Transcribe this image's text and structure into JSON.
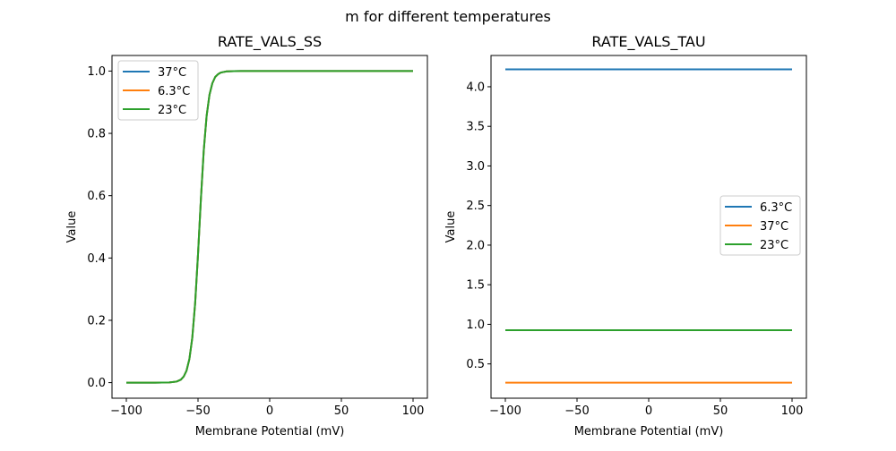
{
  "suptitle": "m for different temperatures",
  "chart_data": [
    {
      "type": "line",
      "title": "RATE_VALS_SS",
      "xlabel": "Membrane Potential (mV)",
      "ylabel": "Value",
      "xlim": [
        -110,
        110
      ],
      "ylim": [
        -0.05,
        1.05
      ],
      "xticks": [
        -100,
        -50,
        0,
        50,
        100
      ],
      "yticks": [
        0.0,
        0.2,
        0.4,
        0.6,
        0.8,
        1.0
      ],
      "xtick_labels": [
        "−100",
        "−50",
        "0",
        "50",
        "100"
      ],
      "ytick_labels": [
        "0.0",
        "0.2",
        "0.4",
        "0.6",
        "0.8",
        "1.0"
      ],
      "grid": false,
      "legend_position": "upper-left",
      "x": [
        -100,
        -80,
        -70,
        -65,
        -62,
        -60,
        -58,
        -56,
        -54,
        -52,
        -50,
        -48,
        -46,
        -44,
        -42,
        -40,
        -38,
        -36,
        -34,
        -30,
        -25,
        -20,
        0,
        50,
        100
      ],
      "series": [
        {
          "name": "37°C",
          "color": "#1f77b4",
          "values": [
            0,
            0,
            0.0006,
            0.0033,
            0.0095,
            0.0193,
            0.0386,
            0.0759,
            0.1437,
            0.255,
            0.412,
            0.588,
            0.745,
            0.856,
            0.924,
            0.961,
            0.981,
            0.99,
            0.9953,
            0.9989,
            0.9998,
            1,
            1,
            1,
            1
          ]
        },
        {
          "name": "6.3°C",
          "color": "#ff7f0e",
          "values": [
            0,
            0,
            0.0006,
            0.0033,
            0.0095,
            0.0193,
            0.0386,
            0.0759,
            0.1437,
            0.255,
            0.412,
            0.588,
            0.745,
            0.856,
            0.924,
            0.961,
            0.981,
            0.99,
            0.9953,
            0.9989,
            0.9998,
            1,
            1,
            1,
            1
          ]
        },
        {
          "name": "23°C",
          "color": "#2ca02c",
          "values": [
            0,
            0,
            0.0006,
            0.0033,
            0.0095,
            0.0193,
            0.0386,
            0.0759,
            0.1437,
            0.255,
            0.412,
            0.588,
            0.745,
            0.856,
            0.924,
            0.961,
            0.981,
            0.99,
            0.9953,
            0.9989,
            0.9998,
            1,
            1,
            1,
            1
          ]
        }
      ]
    },
    {
      "type": "line",
      "title": "RATE_VALS_TAU",
      "xlabel": "Membrane Potential (mV)",
      "ylabel": "Value",
      "xlim": [
        -110,
        110
      ],
      "ylim": [
        0.067,
        4.395
      ],
      "xticks": [
        -100,
        -50,
        0,
        50,
        100
      ],
      "yticks": [
        0.5,
        1.0,
        1.5,
        2.0,
        2.5,
        3.0,
        3.5,
        4.0
      ],
      "xtick_labels": [
        "−100",
        "−50",
        "0",
        "50",
        "100"
      ],
      "ytick_labels": [
        "0.5",
        "1.0",
        "1.5",
        "2.0",
        "2.5",
        "3.0",
        "3.5",
        "4.0"
      ],
      "grid": false,
      "legend_position": "center-right",
      "x": [
        -100,
        100
      ],
      "series": [
        {
          "name": "6.3°C",
          "color": "#1f77b4",
          "values": [
            4.22,
            4.22
          ]
        },
        {
          "name": "37°C",
          "color": "#ff7f0e",
          "values": [
            0.263,
            0.263
          ]
        },
        {
          "name": "23°C",
          "color": "#2ca02c",
          "values": [
            0.926,
            0.926
          ]
        }
      ]
    }
  ]
}
